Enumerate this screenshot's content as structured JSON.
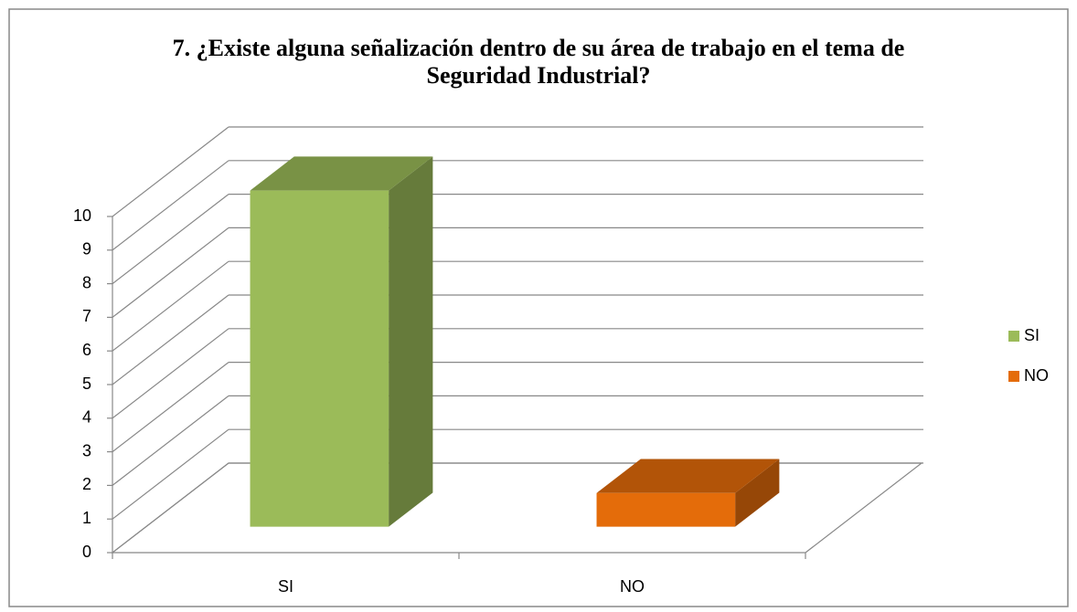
{
  "chart_data": {
    "type": "bar3d",
    "title": "7. ¿Existe alguna señalización dentro de su área de trabajo en el tema de Seguridad Industrial?",
    "categories": [
      "SI",
      "NO"
    ],
    "values": [
      10,
      1
    ],
    "colors": [
      "#9bbb59",
      "#e46c0a"
    ],
    "ylim": [
      0,
      10
    ],
    "yticks": [
      0,
      1,
      2,
      3,
      4,
      5,
      6,
      7,
      8,
      9,
      10
    ],
    "grid": true,
    "legend": "right"
  }
}
